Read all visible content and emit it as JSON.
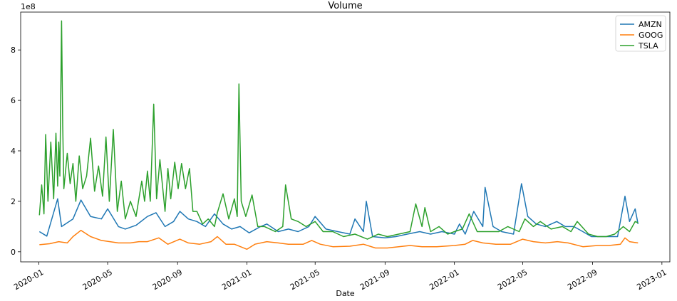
{
  "chart_data": {
    "type": "line",
    "title": "Volume",
    "xlabel": "Date",
    "ylabel": "",
    "y_offset_label": "1e8",
    "xlim": [
      "2019-11-30",
      "2023-01-15"
    ],
    "ylim": [
      -0.4,
      9.5
    ],
    "x_ticks": [
      "2020-01",
      "2020-05",
      "2020-09",
      "2021-01",
      "2021-05",
      "2021-09",
      "2022-01",
      "2022-05",
      "2022-09",
      "2023-01"
    ],
    "y_ticks": [
      "0",
      "2",
      "4",
      "6",
      "8"
    ],
    "legend_position": "top-right",
    "grid": false,
    "series": [
      {
        "name": "AMZN",
        "color": "#1f77b4",
        "points": [
          [
            "2020-01-02",
            0.8
          ],
          [
            "2020-01-15",
            0.62
          ],
          [
            "2020-02-03",
            2.1
          ],
          [
            "2020-02-10",
            1.0
          ],
          [
            "2020-03-01",
            1.3
          ],
          [
            "2020-03-15",
            2.05
          ],
          [
            "2020-04-01",
            1.4
          ],
          [
            "2020-04-20",
            1.3
          ],
          [
            "2020-05-01",
            1.7
          ],
          [
            "2020-05-20",
            1.0
          ],
          [
            "2020-06-01",
            0.9
          ],
          [
            "2020-06-20",
            1.05
          ],
          [
            "2020-07-10",
            1.4
          ],
          [
            "2020-07-25",
            1.55
          ],
          [
            "2020-08-10",
            1.0
          ],
          [
            "2020-08-25",
            1.2
          ],
          [
            "2020-09-05",
            1.6
          ],
          [
            "2020-09-20",
            1.3
          ],
          [
            "2020-10-05",
            1.2
          ],
          [
            "2020-10-20",
            1.0
          ],
          [
            "2020-11-05",
            1.5
          ],
          [
            "2020-11-20",
            1.1
          ],
          [
            "2020-12-05",
            0.9
          ],
          [
            "2020-12-20",
            1.0
          ],
          [
            "2021-01-05",
            0.75
          ],
          [
            "2021-01-25",
            1.0
          ],
          [
            "2021-02-05",
            1.1
          ],
          [
            "2021-02-25",
            0.8
          ],
          [
            "2021-03-15",
            0.9
          ],
          [
            "2021-04-01",
            0.8
          ],
          [
            "2021-04-20",
            1.0
          ],
          [
            "2021-05-01",
            1.4
          ],
          [
            "2021-05-20",
            0.9
          ],
          [
            "2021-06-10",
            0.8
          ],
          [
            "2021-07-01",
            0.7
          ],
          [
            "2021-07-10",
            1.3
          ],
          [
            "2021-07-25",
            0.8
          ],
          [
            "2021-07-30",
            2.0
          ],
          [
            "2021-08-10",
            0.6
          ],
          [
            "2021-09-01",
            0.55
          ],
          [
            "2021-09-20",
            0.6
          ],
          [
            "2021-10-10",
            0.7
          ],
          [
            "2021-11-01",
            0.8
          ],
          [
            "2021-11-20",
            0.7
          ],
          [
            "2021-12-10",
            0.8
          ],
          [
            "2022-01-01",
            0.7
          ],
          [
            "2022-01-10",
            1.1
          ],
          [
            "2022-01-20",
            0.7
          ],
          [
            "2022-02-04",
            1.6
          ],
          [
            "2022-02-20",
            1.0
          ],
          [
            "2022-02-24",
            2.55
          ],
          [
            "2022-03-10",
            1.0
          ],
          [
            "2022-03-25",
            0.8
          ],
          [
            "2022-04-15",
            0.7
          ],
          [
            "2022-04-29",
            2.7
          ],
          [
            "2022-05-10",
            1.4
          ],
          [
            "2022-05-25",
            1.1
          ],
          [
            "2022-06-10",
            1.0
          ],
          [
            "2022-06-30",
            1.2
          ],
          [
            "2022-07-15",
            1.0
          ],
          [
            "2022-07-30",
            1.0
          ],
          [
            "2022-08-15",
            0.8
          ],
          [
            "2022-08-30",
            0.6
          ],
          [
            "2022-09-15",
            0.6
          ],
          [
            "2022-09-30",
            0.6
          ],
          [
            "2022-10-15",
            0.6
          ],
          [
            "2022-10-28",
            2.2
          ],
          [
            "2022-11-05",
            1.2
          ],
          [
            "2022-11-15",
            1.7
          ],
          [
            "2022-11-20",
            1.1
          ]
        ]
      },
      {
        "name": "GOOG",
        "color": "#ff7f0e",
        "points": [
          [
            "2020-01-02",
            0.28
          ],
          [
            "2020-01-20",
            0.32
          ],
          [
            "2020-02-05",
            0.4
          ],
          [
            "2020-02-20",
            0.35
          ],
          [
            "2020-03-01",
            0.6
          ],
          [
            "2020-03-15",
            0.85
          ],
          [
            "2020-04-01",
            0.6
          ],
          [
            "2020-04-20",
            0.45
          ],
          [
            "2020-05-05",
            0.4
          ],
          [
            "2020-05-20",
            0.35
          ],
          [
            "2020-06-10",
            0.35
          ],
          [
            "2020-06-25",
            0.4
          ],
          [
            "2020-07-10",
            0.4
          ],
          [
            "2020-07-30",
            0.55
          ],
          [
            "2020-08-15",
            0.3
          ],
          [
            "2020-09-05",
            0.5
          ],
          [
            "2020-09-20",
            0.35
          ],
          [
            "2020-10-10",
            0.3
          ],
          [
            "2020-10-30",
            0.4
          ],
          [
            "2020-11-10",
            0.6
          ],
          [
            "2020-11-25",
            0.3
          ],
          [
            "2020-12-10",
            0.3
          ],
          [
            "2021-01-01",
            0.1
          ],
          [
            "2021-01-15",
            0.3
          ],
          [
            "2021-02-05",
            0.4
          ],
          [
            "2021-02-25",
            0.35
          ],
          [
            "2021-03-15",
            0.3
          ],
          [
            "2021-04-10",
            0.3
          ],
          [
            "2021-04-25",
            0.45
          ],
          [
            "2021-05-10",
            0.3
          ],
          [
            "2021-06-01",
            0.2
          ],
          [
            "2021-07-01",
            0.22
          ],
          [
            "2021-07-25",
            0.3
          ],
          [
            "2021-08-15",
            0.15
          ],
          [
            "2021-09-05",
            0.15
          ],
          [
            "2021-09-25",
            0.2
          ],
          [
            "2021-10-15",
            0.25
          ],
          [
            "2021-11-05",
            0.2
          ],
          [
            "2021-12-01",
            0.2
          ],
          [
            "2022-01-01",
            0.25
          ],
          [
            "2022-01-20",
            0.3
          ],
          [
            "2022-02-02",
            0.45
          ],
          [
            "2022-02-20",
            0.35
          ],
          [
            "2022-03-15",
            0.3
          ],
          [
            "2022-04-10",
            0.3
          ],
          [
            "2022-05-01",
            0.5
          ],
          [
            "2022-05-20",
            0.4
          ],
          [
            "2022-06-10",
            0.35
          ],
          [
            "2022-07-01",
            0.4
          ],
          [
            "2022-07-20",
            0.35
          ],
          [
            "2022-08-15",
            0.2
          ],
          [
            "2022-09-10",
            0.25
          ],
          [
            "2022-09-30",
            0.25
          ],
          [
            "2022-10-20",
            0.3
          ],
          [
            "2022-10-28",
            0.55
          ],
          [
            "2022-11-05",
            0.4
          ],
          [
            "2022-11-20",
            0.35
          ]
        ]
      },
      {
        "name": "TSLA",
        "color": "#2ca02c",
        "points": [
          [
            "2020-01-02",
            1.45
          ],
          [
            "2020-01-06",
            2.65
          ],
          [
            "2020-01-10",
            1.5
          ],
          [
            "2020-01-13",
            4.65
          ],
          [
            "2020-01-17",
            2.0
          ],
          [
            "2020-01-22",
            4.35
          ],
          [
            "2020-01-27",
            2.1
          ],
          [
            "2020-01-31",
            4.7
          ],
          [
            "2020-02-03",
            2.6
          ],
          [
            "2020-02-05",
            4.35
          ],
          [
            "2020-02-07",
            3.0
          ],
          [
            "2020-02-10",
            9.15
          ],
          [
            "2020-02-12",
            5.0
          ],
          [
            "2020-02-14",
            2.5
          ],
          [
            "2020-02-20",
            3.9
          ],
          [
            "2020-02-25",
            2.7
          ],
          [
            "2020-03-01",
            3.5
          ],
          [
            "2020-03-06",
            2.0
          ],
          [
            "2020-03-12",
            3.8
          ],
          [
            "2020-03-18",
            2.5
          ],
          [
            "2020-03-25",
            3.0
          ],
          [
            "2020-04-01",
            4.5
          ],
          [
            "2020-04-08",
            2.4
          ],
          [
            "2020-04-15",
            3.4
          ],
          [
            "2020-04-22",
            2.2
          ],
          [
            "2020-04-28",
            4.55
          ],
          [
            "2020-05-04",
            2.0
          ],
          [
            "2020-05-11",
            4.85
          ],
          [
            "2020-05-18",
            1.6
          ],
          [
            "2020-05-25",
            2.8
          ],
          [
            "2020-06-01",
            1.3
          ],
          [
            "2020-06-10",
            2.0
          ],
          [
            "2020-06-20",
            1.4
          ],
          [
            "2020-06-30",
            2.8
          ],
          [
            "2020-07-05",
            2.0
          ],
          [
            "2020-07-10",
            3.2
          ],
          [
            "2020-07-15",
            2.0
          ],
          [
            "2020-07-21",
            5.85
          ],
          [
            "2020-07-26",
            2.1
          ],
          [
            "2020-08-01",
            3.65
          ],
          [
            "2020-08-10",
            1.6
          ],
          [
            "2020-08-15",
            3.3
          ],
          [
            "2020-08-20",
            2.1
          ],
          [
            "2020-08-27",
            3.55
          ],
          [
            "2020-09-02",
            2.5
          ],
          [
            "2020-09-08",
            3.5
          ],
          [
            "2020-09-15",
            2.5
          ],
          [
            "2020-09-22",
            3.3
          ],
          [
            "2020-09-28",
            1.6
          ],
          [
            "2020-10-05",
            1.6
          ],
          [
            "2020-10-15",
            1.1
          ],
          [
            "2020-10-25",
            1.3
          ],
          [
            "2020-11-05",
            1.0
          ],
          [
            "2020-11-10",
            1.55
          ],
          [
            "2020-11-20",
            2.3
          ],
          [
            "2020-11-30",
            1.3
          ],
          [
            "2020-12-10",
            2.1
          ],
          [
            "2020-12-15",
            1.4
          ],
          [
            "2020-12-18",
            6.65
          ],
          [
            "2020-12-22",
            2.0
          ],
          [
            "2020-12-30",
            1.4
          ],
          [
            "2021-01-10",
            2.25
          ],
          [
            "2021-01-20",
            1.0
          ],
          [
            "2021-02-01",
            1.0
          ],
          [
            "2021-02-20",
            0.8
          ],
          [
            "2021-03-05",
            1.0
          ],
          [
            "2021-03-10",
            2.65
          ],
          [
            "2021-03-20",
            1.3
          ],
          [
            "2021-04-01",
            1.2
          ],
          [
            "2021-04-15",
            1.0
          ],
          [
            "2021-05-01",
            1.2
          ],
          [
            "2021-05-15",
            0.8
          ],
          [
            "2021-06-01",
            0.8
          ],
          [
            "2021-06-20",
            0.6
          ],
          [
            "2021-07-10",
            0.7
          ],
          [
            "2021-08-01",
            0.5
          ],
          [
            "2021-08-20",
            0.7
          ],
          [
            "2021-09-05",
            0.6
          ],
          [
            "2021-09-25",
            0.7
          ],
          [
            "2021-10-15",
            0.8
          ],
          [
            "2021-10-25",
            1.9
          ],
          [
            "2021-11-05",
            1.0
          ],
          [
            "2021-11-10",
            1.75
          ],
          [
            "2021-11-20",
            0.8
          ],
          [
            "2021-12-05",
            1.0
          ],
          [
            "2021-12-20",
            0.7
          ],
          [
            "2022-01-01",
            0.8
          ],
          [
            "2022-01-15",
            0.9
          ],
          [
            "2022-01-27",
            1.5
          ],
          [
            "2022-02-10",
            0.8
          ],
          [
            "2022-03-01",
            0.8
          ],
          [
            "2022-03-20",
            0.8
          ],
          [
            "2022-04-05",
            1.0
          ],
          [
            "2022-04-25",
            0.8
          ],
          [
            "2022-05-05",
            1.3
          ],
          [
            "2022-05-20",
            1.0
          ],
          [
            "2022-06-01",
            1.2
          ],
          [
            "2022-06-20",
            0.9
          ],
          [
            "2022-07-10",
            1.0
          ],
          [
            "2022-07-25",
            0.8
          ],
          [
            "2022-08-05",
            1.2
          ],
          [
            "2022-08-25",
            0.7
          ],
          [
            "2022-09-10",
            0.6
          ],
          [
            "2022-09-25",
            0.6
          ],
          [
            "2022-10-10",
            0.7
          ],
          [
            "2022-10-25",
            1.0
          ],
          [
            "2022-11-05",
            0.8
          ],
          [
            "2022-11-15",
            1.2
          ],
          [
            "2022-11-20",
            1.15
          ]
        ]
      }
    ]
  }
}
